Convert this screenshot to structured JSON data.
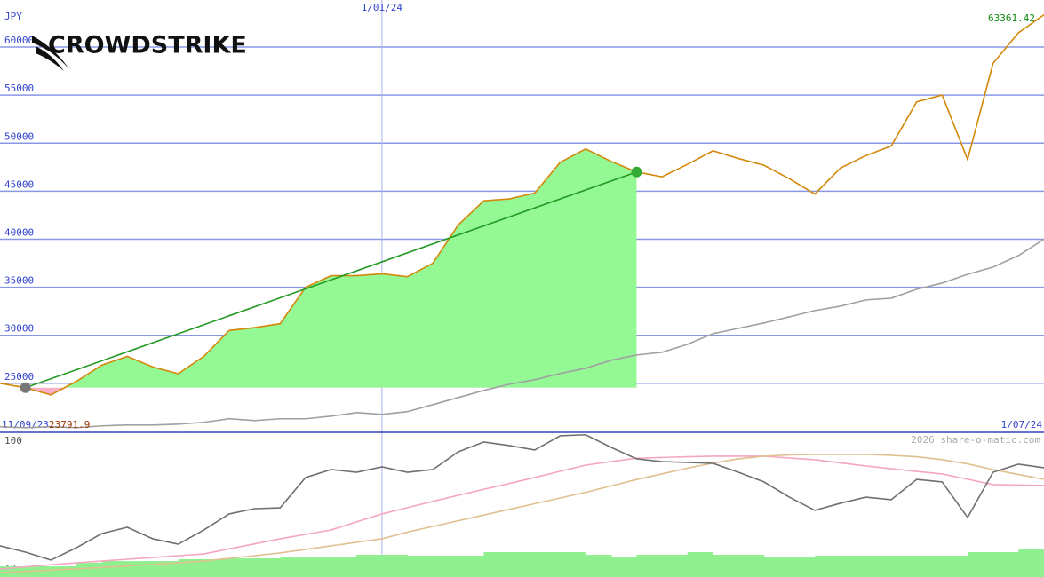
{
  "chart_data": [
    {
      "type": "line",
      "title": "CROWDSTRIKE",
      "y_label": "JPY",
      "categories": [
        "11/09/23",
        null,
        null,
        null,
        null,
        null,
        null,
        null,
        null,
        null,
        null,
        null,
        null,
        null,
        null,
        "1/01/24",
        null,
        null,
        null,
        null,
        null,
        null,
        null,
        null,
        null,
        null,
        null,
        null,
        null,
        null,
        null,
        null,
        null,
        null,
        null,
        null,
        null,
        null,
        null,
        null,
        null,
        "1/07/24"
      ],
      "series": [
        {
          "color": "#d4880a",
          "values": [
            25000,
            24540,
            23791.9,
            25200,
            26900,
            27800,
            26700,
            26000,
            27800,
            30500,
            30800,
            31200,
            35000,
            36200,
            36200,
            36400,
            36100,
            37500,
            41500,
            44000,
            44200,
            44800,
            48000,
            49400,
            48100,
            47000,
            46500,
            47800,
            49200,
            48400,
            47700,
            46300,
            44700,
            47400,
            48700,
            49700,
            54300,
            55000,
            48300,
            58300,
            61500,
            63361.42
          ]
        },
        {
          "color": "#a0a0a0",
          "values": [
            20480,
            20380,
            20480,
            20380,
            20570,
            20660,
            20660,
            20750,
            20940,
            21310,
            21120,
            21310,
            21310,
            21580,
            21950,
            21770,
            22050,
            22780,
            23520,
            24260,
            24900,
            25370,
            26020,
            26570,
            27400,
            27950,
            28230,
            29060,
            30170,
            30720,
            31280,
            31920,
            32570,
            33030,
            33680,
            33860,
            34790,
            35430,
            36350,
            37100,
            38300,
            40000
          ]
        }
      ],
      "ylim": [
        19900,
        64900
      ],
      "yticks": [
        25000,
        30000,
        35000,
        40000,
        45000,
        50000,
        55000,
        60000
      ],
      "grid": true
    },
    {
      "type": "line",
      "watermark": "2026 share-o-matic.com",
      "series": [
        {
          "type": "bar",
          "color": "#90f090",
          "values": [
            11.9,
            11.9,
            11.9,
            14.4,
            15.6,
            15.6,
            15.6,
            16.9,
            16.9,
            17.5,
            17.5,
            18.1,
            18.1,
            18.1,
            20,
            20,
            19.4,
            19.4,
            19.4,
            21.9,
            21.9,
            21.9,
            21.9,
            20,
            18.1,
            20,
            20,
            21.9,
            20,
            20,
            18.1,
            18.1,
            19.4,
            19.4,
            19.4,
            19.4,
            19.4,
            19.4,
            21.9,
            21.9,
            23.8,
            23.8
          ]
        },
        {
          "color": "#f4a6c0",
          "values": [
            10,
            11.5,
            13,
            14.4,
            15.6,
            16.9,
            18.1,
            19.4,
            20.6,
            24.2,
            27.7,
            31.3,
            34.4,
            37.5,
            43.2,
            48.8,
            53.2,
            57.6,
            61.9,
            66.1,
            70.2,
            74.4,
            78.8,
            83.1,
            85.6,
            88,
            88.5,
            89,
            89.4,
            89.4,
            89.4,
            88.1,
            86.9,
            84.7,
            82.5,
            80.6,
            78.7,
            76.9,
            73.2,
            69.4,
            69.1,
            68.8
          ]
        },
        {
          "color": "#e0c090",
          "values": [
            7.5,
            8.3,
            9.2,
            10.1,
            11.1,
            12.1,
            13.2,
            14.4,
            15.6,
            17.5,
            19.4,
            21.3,
            23.8,
            26.3,
            28.8,
            31.3,
            36,
            40,
            44,
            48,
            52,
            56,
            60,
            64,
            68.5,
            73,
            77,
            81,
            84.5,
            87.5,
            89.4,
            90.3,
            90.6,
            90.6,
            90.6,
            90,
            89,
            87,
            84,
            80,
            76.5,
            73.1
          ]
        },
        {
          "color": "#707070",
          "values": [
            26.3,
            21.9,
            16.3,
            25,
            35,
            39.4,
            31.3,
            27.5,
            37.5,
            48.8,
            52.5,
            53.1,
            74.4,
            80,
            78.1,
            81.9,
            78.1,
            80,
            92.5,
            99.4,
            96.9,
            93.8,
            103.8,
            104.5,
            95.6,
            87.5,
            85.6,
            85,
            84.4,
            78.1,
            71.3,
            60.6,
            51.3,
            56.3,
            60.6,
            58.8,
            73.1,
            71.3,
            46.3,
            78.1,
            83.8,
            81.3
          ]
        }
      ],
      "ylim": [
        4.4,
        105.6
      ],
      "yticks": [
        10,
        100
      ],
      "grid": false
    }
  ]
}
